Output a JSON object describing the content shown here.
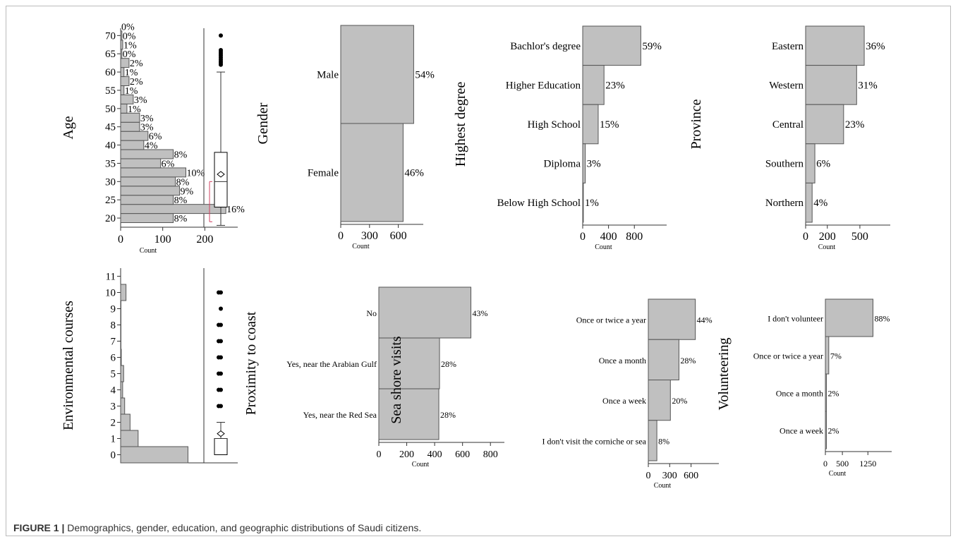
{
  "caption": {
    "label": "FIGURE 1 |",
    "text": "Demographics, gender, education, and geographic distributions of Saudi citizens."
  },
  "colors": {
    "bar_fill": "#c0c0c0",
    "bar_stroke": "#555555",
    "axis": "#333333",
    "whisker_tick": "#d04060"
  },
  "chart_data": [
    {
      "type": "bar",
      "orientation": "horizontal",
      "title": "",
      "ylabel": "Age",
      "xlabel": "Count",
      "bins": [
        20,
        22.5,
        25,
        27.5,
        30,
        32.5,
        35,
        37.5,
        40,
        42.5,
        45,
        47.5,
        50,
        52.5,
        55,
        57.5,
        60,
        62.5,
        65,
        67.5,
        70
      ],
      "values": [
        125,
        250,
        125,
        140,
        130,
        155,
        95,
        125,
        55,
        65,
        45,
        45,
        15,
        30,
        8,
        20,
        8,
        20,
        3,
        5,
        3
      ],
      "labels": [
        "8%",
        "16%",
        "8%",
        "9%",
        "8%",
        "10%",
        "6%",
        "8%",
        "4%",
        "6%",
        "3%",
        "3%",
        "1%",
        "3%",
        "1%",
        "2%",
        "1%",
        "2%",
        "0%",
        "1%",
        "0%"
      ],
      "extra_labels": [
        "0%"
      ],
      "yticks": [
        20,
        25,
        30,
        35,
        40,
        45,
        50,
        55,
        60,
        65,
        70
      ],
      "ylim": [
        17.5,
        72
      ],
      "xticks": [
        0,
        100,
        200
      ],
      "xlim": [
        0,
        300
      ],
      "boxplot": {
        "whisker_low": 18,
        "q1": 23,
        "median": 30,
        "q3": 38,
        "whisker_high": 60,
        "mean": 32,
        "outliers": [
          62,
          62.5,
          63,
          63.5,
          64,
          64.5,
          65,
          65.5,
          66,
          70
        ],
        "bracket": [
          19,
          30
        ]
      }
    },
    {
      "type": "bar",
      "orientation": "horizontal",
      "title": "",
      "ylabel": "Gender",
      "xlabel": "Count",
      "categories": [
        "Male",
        "Female"
      ],
      "values": [
        760,
        650
      ],
      "labels": [
        "54%",
        "46%"
      ],
      "xticks": [
        0,
        300,
        600
      ],
      "xlim": [
        0,
        860
      ]
    },
    {
      "type": "bar",
      "orientation": "horizontal",
      "title": "",
      "ylabel": "Highest degree",
      "xlabel": "Count",
      "categories": [
        "Bachlor's degree",
        "Higher Education",
        "High School",
        "Diploma",
        "Below High School"
      ],
      "values": [
        900,
        330,
        240,
        40,
        10
      ],
      "labels": [
        "59%",
        "23%",
        "15%",
        "3%",
        "1%"
      ],
      "xticks": [
        0,
        400,
        800
      ],
      "xlim": [
        0,
        1300
      ]
    },
    {
      "type": "bar",
      "orientation": "horizontal",
      "title": "",
      "ylabel": "Province",
      "xlabel": "Count",
      "categories": [
        "Eastern",
        "Western",
        "Central",
        "Southern",
        "Northern"
      ],
      "values": [
        540,
        470,
        350,
        85,
        60
      ],
      "labels": [
        "36%",
        "31%",
        "23%",
        "6%",
        "4%"
      ],
      "xticks": [
        0,
        200,
        500
      ],
      "xlim": [
        0,
        780
      ]
    },
    {
      "type": "bar",
      "orientation": "horizontal",
      "title": "",
      "ylabel": "Environmental courses",
      "xlabel": "",
      "bins": [
        0,
        1,
        2,
        3,
        4,
        5,
        6,
        7,
        8,
        9,
        10
      ],
      "values": [
        1000,
        260,
        140,
        60,
        30,
        45,
        10,
        5,
        5,
        5,
        80
      ],
      "yticks": [
        0,
        1,
        2,
        3,
        4,
        5,
        6,
        7,
        8,
        9,
        10,
        11
      ],
      "ylim": [
        -0.5,
        11.5
      ],
      "xlim": [
        0,
        1100
      ],
      "boxplot": {
        "whisker_low": 0,
        "q1": 0,
        "median": 1,
        "q3": 1,
        "whisker_high": 2,
        "mean": 1.3,
        "outliers": [
          3,
          3,
          4,
          4,
          5,
          5,
          6,
          6,
          7,
          7,
          8,
          8,
          9,
          10,
          10
        ]
      }
    },
    {
      "type": "bar",
      "orientation": "horizontal",
      "title": "",
      "ylabel": "Proximity to coast",
      "xlabel": "Count",
      "categories": [
        "No",
        "Yes, near the Arabian Gulf",
        "Yes, near the Red Sea"
      ],
      "values": [
        660,
        435,
        430
      ],
      "labels": [
        "43%",
        "28%",
        "28%"
      ],
      "xticks": [
        0,
        200,
        400,
        600,
        800
      ],
      "xlim": [
        0,
        900
      ]
    },
    {
      "type": "bar",
      "orientation": "horizontal",
      "title": "",
      "ylabel": "Sea shore visits",
      "xlabel": "Count",
      "categories": [
        "Once or twice a year",
        "Once a month",
        "Once a week",
        "I don't visit the corniche or sea"
      ],
      "values": [
        660,
        430,
        310,
        120
      ],
      "labels": [
        "44%",
        "28%",
        "20%",
        "8%"
      ],
      "xticks": [
        0,
        300,
        600
      ],
      "xlim": [
        0,
        990
      ]
    },
    {
      "type": "bar",
      "orientation": "horizontal",
      "title": "",
      "ylabel": "Volunteering",
      "xlabel": "Count",
      "categories": [
        "I don't volunteer",
        "Once or twice a year",
        "Once a month",
        "Once a week"
      ],
      "values": [
        1400,
        100,
        30,
        30
      ],
      "labels": [
        "88%",
        "7%",
        "2%",
        "2%"
      ],
      "xticks": [
        0,
        500,
        1250
      ],
      "xlim": [
        0,
        1950
      ]
    }
  ]
}
